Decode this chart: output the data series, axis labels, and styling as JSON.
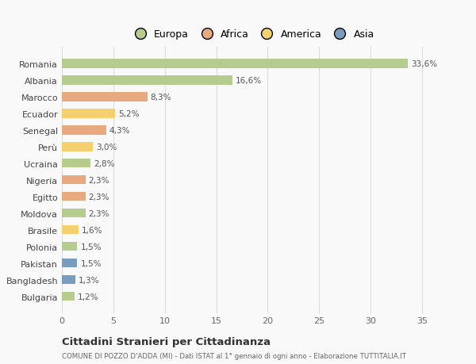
{
  "countries": [
    "Romania",
    "Albania",
    "Marocco",
    "Ecuador",
    "Senegal",
    "Perù",
    "Ucraina",
    "Nigeria",
    "Egitto",
    "Moldova",
    "Brasile",
    "Polonia",
    "Pakistan",
    "Bangladesh",
    "Bulgaria"
  ],
  "values": [
    33.6,
    16.6,
    8.3,
    5.2,
    4.3,
    3.0,
    2.8,
    2.3,
    2.3,
    2.3,
    1.6,
    1.5,
    1.5,
    1.3,
    1.2
  ],
  "labels": [
    "33,6%",
    "16,6%",
    "8,3%",
    "5,2%",
    "4,3%",
    "3,0%",
    "2,8%",
    "2,3%",
    "2,3%",
    "2,3%",
    "1,6%",
    "1,5%",
    "1,5%",
    "1,3%",
    "1,2%"
  ],
  "continents": [
    "Europa",
    "Europa",
    "Africa",
    "America",
    "Africa",
    "America",
    "Europa",
    "Africa",
    "Africa",
    "Europa",
    "America",
    "Europa",
    "Asia",
    "Asia",
    "Europa"
  ],
  "colors": {
    "Europa": "#b5cc8e",
    "Africa": "#e8a97e",
    "America": "#f5d06e",
    "Asia": "#7a9dbf"
  },
  "legend_order": [
    "Europa",
    "Africa",
    "America",
    "Asia"
  ],
  "legend_colors": [
    "#b5cc8e",
    "#e8a97e",
    "#f5d06e",
    "#7a9dbf"
  ],
  "xlim": [
    0,
    37
  ],
  "xticks": [
    0,
    5,
    10,
    15,
    20,
    25,
    30,
    35
  ],
  "title": "Cittadini Stranieri per Cittadinanza",
  "subtitle": "COMUNE DI POZZO D'ADDA (MI) - Dati ISTAT al 1° gennaio di ogni anno - Elaborazione TUTTITALIA.IT",
  "background_color": "#f9f9f9",
  "grid_color": "#dddddd",
  "bar_height": 0.55
}
